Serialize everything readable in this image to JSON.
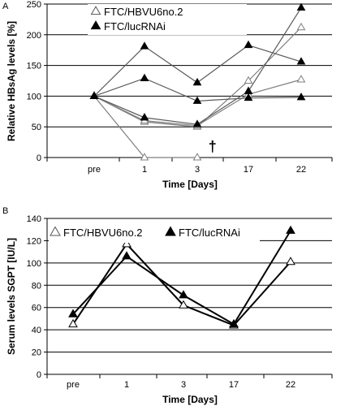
{
  "panels": [
    {
      "letter": "A",
      "chart_data": {
        "type": "line",
        "categories": [
          "pre",
          "1",
          "3",
          "17",
          "22"
        ],
        "xlabel": "Time [Days]",
        "ylabel": "Relative HBsAg levels [%]",
        "ylim": [
          0,
          250
        ],
        "yticks": [
          0,
          50,
          100,
          150,
          200,
          250
        ],
        "grid": true,
        "legend_placement": "top-left",
        "legend": [
          {
            "label": "FTC/HBVU6no.2",
            "marker": "open-triangle"
          },
          {
            "label": "FTC/lucRNAi",
            "marker": "filled-triangle"
          }
        ],
        "series": [
          {
            "group": "FTC/HBVU6no.2",
            "marker": "open-triangle",
            "color": "#7f7f7f",
            "points": [
              [
                0,
                100
              ],
              [
                1,
                0
              ],
              [
                2,
                0
              ]
            ]
          },
          {
            "group": "FTC/HBVU6no.2",
            "marker": "open-triangle",
            "color": "#7f7f7f",
            "points": [
              [
                0,
                100
              ],
              [
                1,
                58
              ],
              [
                2,
                50
              ],
              [
                3,
                125
              ],
              [
                4,
                212
              ]
            ]
          },
          {
            "group": "FTC/HBVU6no.2",
            "marker": "open-triangle",
            "color": "#7f7f7f",
            "points": [
              [
                0,
                100
              ],
              [
                1,
                60
              ],
              [
                2,
                52
              ],
              [
                3,
                103
              ],
              [
                4,
                127
              ]
            ]
          },
          {
            "group": "FTC/lucRNAi",
            "marker": "filled-triangle",
            "color": "#595959",
            "points": [
              [
                0,
                100
              ],
              [
                1,
                181
              ],
              [
                2,
                122
              ],
              [
                3,
                183
              ],
              [
                4,
                156
              ]
            ]
          },
          {
            "group": "FTC/lucRNAi",
            "marker": "filled-triangle",
            "color": "#595959",
            "points": [
              [
                0,
                100
              ],
              [
                1,
                129
              ],
              [
                2,
                92
              ],
              [
                3,
                97
              ],
              [
                4,
                98
              ]
            ]
          },
          {
            "group": "FTC/lucRNAi",
            "marker": "filled-triangle",
            "color": "#595959",
            "points": [
              [
                0,
                100
              ],
              [
                1,
                65
              ],
              [
                2,
                54
              ],
              [
                3,
                108
              ],
              [
                4,
                244
              ]
            ]
          }
        ],
        "annotations": [
          {
            "text": "†",
            "x": 2.35,
            "y": 10
          }
        ]
      }
    },
    {
      "letter": "B",
      "chart_data": {
        "type": "line",
        "categories": [
          "pre",
          "1",
          "3",
          "17",
          "22"
        ],
        "xlabel": "Time [Days]",
        "ylabel": "Serum levels SGPT [IU/L]",
        "ylim": [
          0,
          140
        ],
        "yticks": [
          0,
          20,
          40,
          60,
          80,
          100,
          120,
          140
        ],
        "grid": true,
        "legend_placement": "top-left",
        "legend": [
          {
            "label": "FTC/HBVU6no.2",
            "marker": "open-triangle"
          },
          {
            "label": "FTC/lucRNAi",
            "marker": "filled-triangle"
          }
        ],
        "series": [
          {
            "group": "FTC/HBVU6no.2",
            "marker": "open-triangle",
            "color": "#000000",
            "points": [
              [
                0,
                45
              ],
              [
                1,
                117
              ],
              [
                2,
                62
              ],
              [
                3,
                44
              ],
              [
                4,
                101
              ]
            ]
          },
          {
            "group": "FTC/lucRNAi",
            "marker": "filled-triangle",
            "color": "#000000",
            "points": [
              [
                0,
                54
              ],
              [
                1,
                106
              ],
              [
                2,
                71
              ],
              [
                3,
                45
              ],
              [
                4,
                129
              ]
            ]
          }
        ]
      }
    }
  ]
}
